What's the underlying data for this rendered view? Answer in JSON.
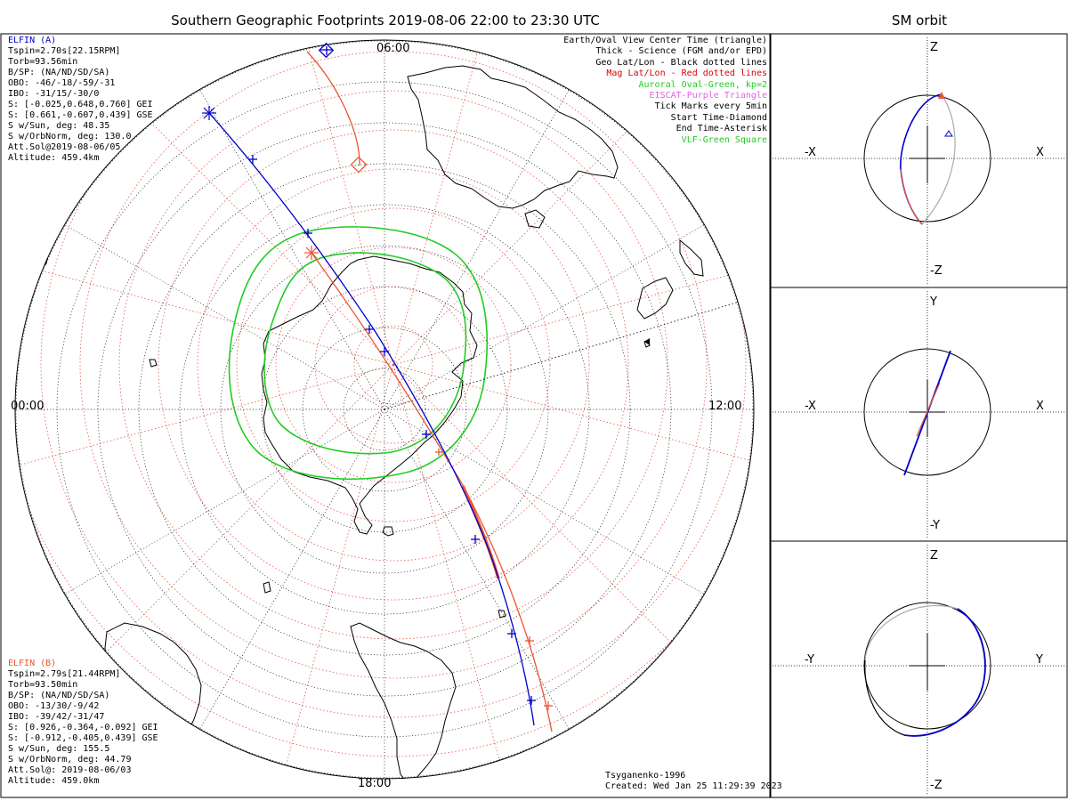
{
  "title": "Southern Geographic Footprints 2019-08-06 22:00 to 23:30 UTC",
  "right_title": "SM orbit",
  "main_map": {
    "time_labels": {
      "top": "06:00",
      "left": "00:00",
      "right": "12:00",
      "bottom": "18:00"
    }
  },
  "elfin_a": {
    "color": "#0000cc",
    "lines": [
      "ELFIN (A)",
      "Tspin=2.70s[22.15RPM]",
      "Torb=93.56min",
      "B/SP: (NA/ND/SD/SA)",
      "OBO: -46/-18/-59/-31",
      "IBO: -31/15/-30/0",
      "S: [-0.025,0.648,0.760] GEI",
      "S: [0.661,-0.607,0.439] GSE",
      "S w/Sun, deg: 48.35",
      "S w/OrbNorm, deg: 130.0",
      "Att.Sol@2019-08-06/05",
      "Altitude: 459.4km"
    ]
  },
  "elfin_b": {
    "color": "#ee5533",
    "lines": [
      "ELFIN (B)",
      "Tspin=2.79s[21.44RPM]",
      "Torb=93.50min",
      "B/SP: (NA/ND/SD/SA)",
      "OBO: -13/30/-9/42",
      "IBO: -39/42/-31/47",
      "S: [0.926,-0.364,-0.092] GEI",
      "S: [-0.912,-0.405,0.439] GSE",
      "S w/Sun, deg: 155.5",
      "S w/OrbNorm, deg: 44.79",
      "Att.Sol@: 2019-08-06/03",
      "Altitude: 459.0km"
    ]
  },
  "legend": [
    {
      "text": "Earth/Oval View Center Time (triangle)",
      "color": "#000000"
    },
    {
      "text": "Thick - Science (FGM and/or EPD)",
      "color": "#000000"
    },
    {
      "text": "Geo Lat/Lon - Black dotted lines",
      "color": "#000000"
    },
    {
      "text": "Mag Lat/Lon - Red dotted lines",
      "color": "#dd0000"
    },
    {
      "text": "Auroral Oval-Green, kp=2",
      "color": "#22cc22"
    },
    {
      "text": "EISCAT-Purple Triangle",
      "color": "#dd66dd"
    },
    {
      "text": "Tick Marks every 5min",
      "color": "#000000"
    },
    {
      "text": "Start Time-Diamond",
      "color": "#000000"
    },
    {
      "text": "End Time-Asterisk",
      "color": "#000000"
    },
    {
      "text": "VLF-Green Square",
      "color": "#22cc22"
    }
  ],
  "footer": {
    "model": "Tsyganenko-1996",
    "created": "Created: Wed Jan 25 11:29:39 2023"
  },
  "panels": [
    {
      "h_neg": "-X",
      "h_pos": "X",
      "v_pos": "Z",
      "v_neg": "-Z"
    },
    {
      "h_neg": "-X",
      "h_pos": "X",
      "v_pos": "Y",
      "v_neg": "-Y"
    },
    {
      "h_neg": "-Y",
      "h_pos": "Y",
      "v_pos": "Z",
      "v_neg": "-Z"
    }
  ]
}
